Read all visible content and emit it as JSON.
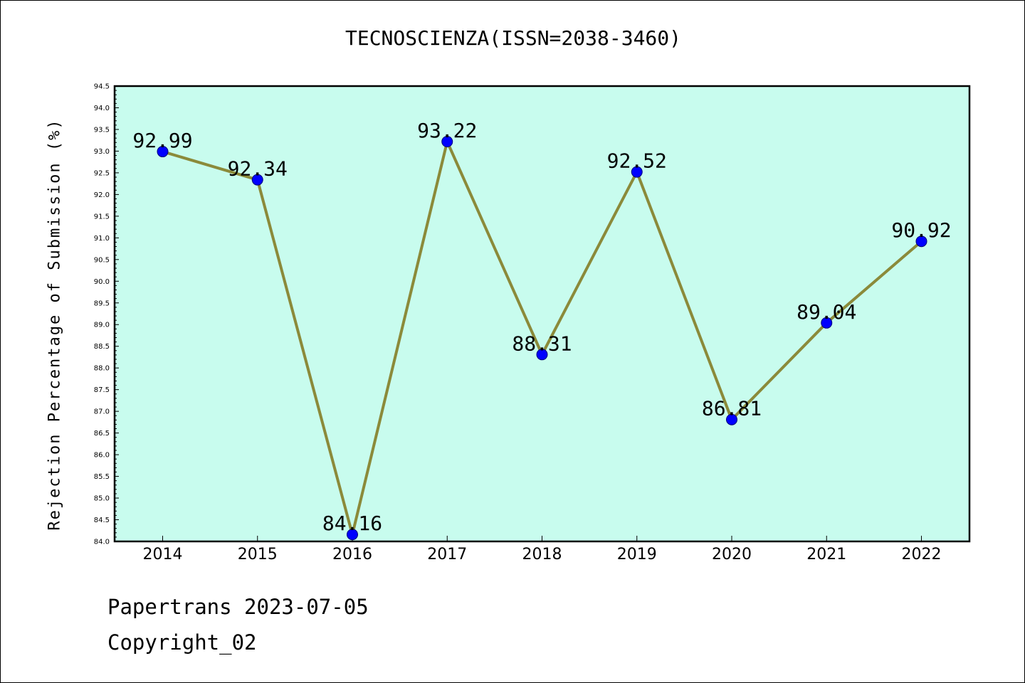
{
  "chart_data": {
    "type": "line",
    "title": "TECNOSCIENZA(ISSN=2038-3460)",
    "xlabel": "",
    "ylabel": "Rejection Percentage of Submission (%)",
    "categories": [
      "2014",
      "2015",
      "2016",
      "2017",
      "2018",
      "2019",
      "2020",
      "2021",
      "2022"
    ],
    "values": [
      92.99,
      92.34,
      84.16,
      93.22,
      88.31,
      92.52,
      86.81,
      89.04,
      90.92
    ],
    "value_labels": [
      "92.99",
      "92.34",
      "84.16",
      "93.22",
      "88.31",
      "92.52",
      "86.81",
      "89.04",
      "90.92"
    ],
    "ylim": [
      84.0,
      94.5
    ],
    "yticks": [
      "84.0",
      "84.5",
      "85.0",
      "85.5",
      "86.0",
      "86.5",
      "87.0",
      "87.5",
      "88.0",
      "88.5",
      "89.0",
      "89.5",
      "90.0",
      "90.5",
      "91.0",
      "91.5",
      "92.0",
      "92.5",
      "93.0",
      "93.5",
      "94.0",
      "94.5"
    ],
    "grid": false,
    "legend": "none",
    "colors": {
      "plot_background": "#c8fcee",
      "line": "#8b8a3a",
      "marker": "#0000ff",
      "axes": "#000000"
    }
  },
  "footer": {
    "line1": "Papertrans 2023-07-05",
    "line2": "Copyright_02"
  }
}
